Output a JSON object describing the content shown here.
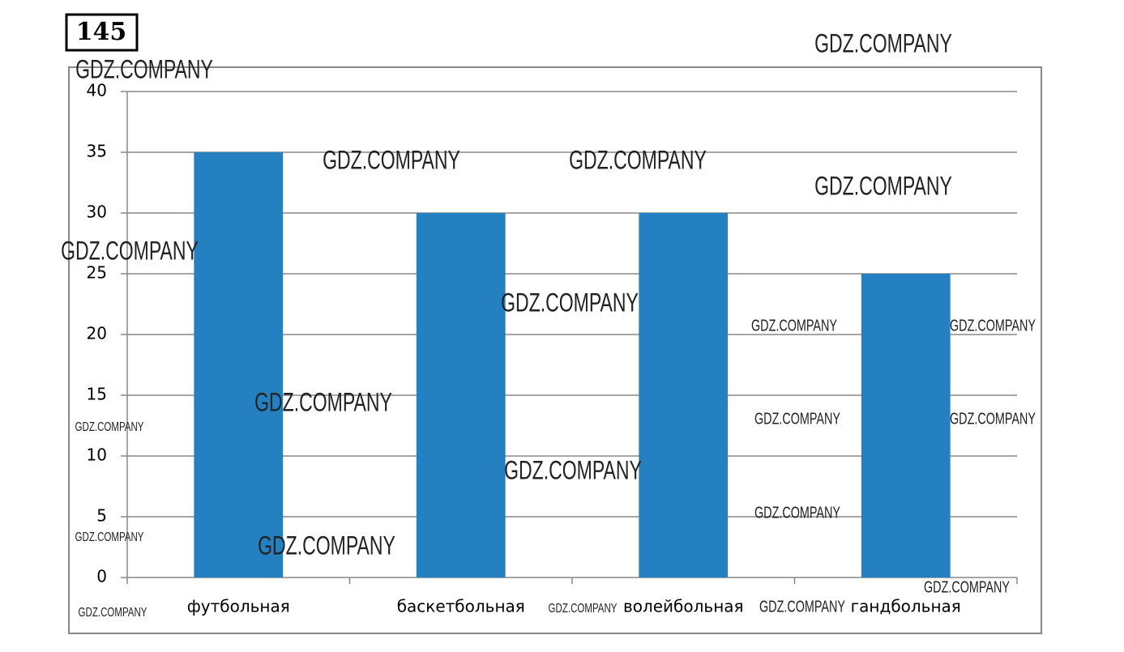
{
  "badge": "145",
  "watermark": "GDZ.COMPANY",
  "chart_data": {
    "type": "bar",
    "categories": [
      "футбольная",
      "баскетбольная",
      "волейбольная",
      "гандбольная"
    ],
    "values": [
      35,
      30,
      30,
      25
    ],
    "color": "#2580c1",
    "ylim": [
      0,
      40
    ],
    "yticks": [
      0,
      5,
      10,
      15,
      20,
      25,
      30,
      35,
      40
    ],
    "grid": true
  }
}
